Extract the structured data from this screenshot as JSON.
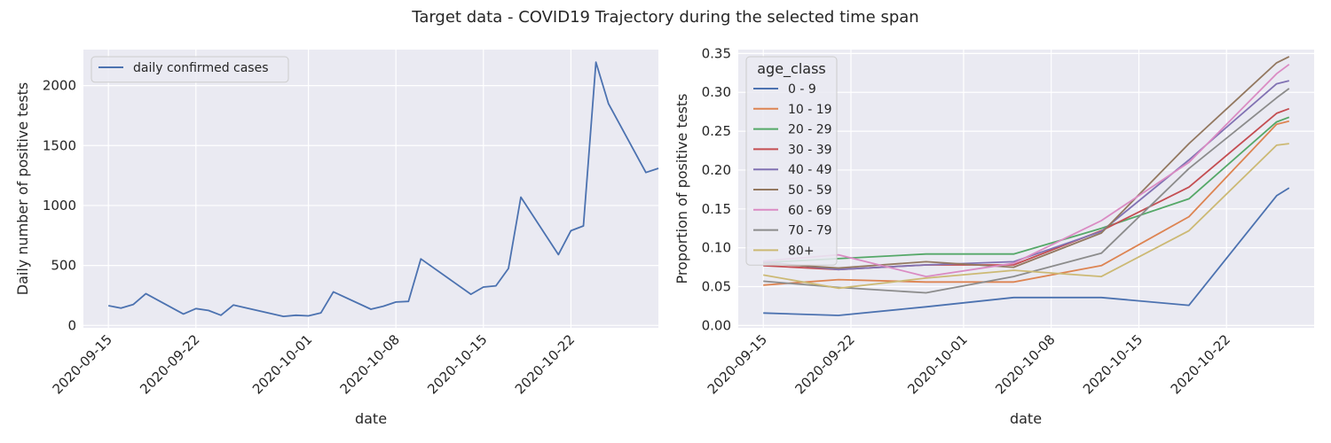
{
  "figure": {
    "title": "Target data - COVID19 Trajectory during the selected time span"
  },
  "chart_data": [
    {
      "type": "line",
      "xlabel": "date",
      "ylabel": "Daily number of positive tests",
      "xlim": [
        "2020-09-13",
        "2020-10-29"
      ],
      "ylim": [
        -20,
        2300
      ],
      "x_ticks": [
        "2020-09-15",
        "2020-09-22",
        "2020-10-01",
        "2020-10-08",
        "2020-10-15",
        "2020-10-22"
      ],
      "y_ticks": [
        0,
        500,
        1000,
        1500,
        2000
      ],
      "grid": true,
      "legend_position": "upper-left",
      "series": [
        {
          "name": "daily confirmed cases",
          "color": "#4c72b0",
          "x": [
            "2020-09-15",
            "2020-09-16",
            "2020-09-17",
            "2020-09-18",
            "2020-09-21",
            "2020-09-22",
            "2020-09-23",
            "2020-09-24",
            "2020-09-25",
            "2020-09-29",
            "2020-09-30",
            "2020-10-01",
            "2020-10-02",
            "2020-10-03",
            "2020-10-06",
            "2020-10-07",
            "2020-10-08",
            "2020-10-09",
            "2020-10-10",
            "2020-10-14",
            "2020-10-15",
            "2020-10-16",
            "2020-10-17",
            "2020-10-18",
            "2020-10-21",
            "2020-10-22",
            "2020-10-23",
            "2020-10-24",
            "2020-10-25",
            "2020-10-28",
            "2020-10-29"
          ],
          "values": [
            165,
            145,
            175,
            265,
            95,
            140,
            125,
            85,
            170,
            75,
            85,
            80,
            105,
            280,
            135,
            160,
            195,
            200,
            555,
            260,
            320,
            330,
            475,
            1070,
            590,
            790,
            830,
            2195,
            1850,
            1275,
            1310
          ]
        }
      ]
    },
    {
      "type": "line",
      "xlabel": "date",
      "ylabel": "Proportion of positive tests",
      "xlim": [
        "2020-09-13",
        "2020-10-29"
      ],
      "ylim": [
        -0.003,
        0.355
      ],
      "x_ticks": [
        "2020-09-15",
        "2020-09-22",
        "2020-10-01",
        "2020-10-08",
        "2020-10-15",
        "2020-10-22"
      ],
      "y_ticks": [
        0.0,
        0.05,
        0.1,
        0.15,
        0.2,
        0.25,
        0.3,
        0.35
      ],
      "y_tick_labels": [
        "0.00",
        "0.05",
        "0.10",
        "0.15",
        "0.20",
        "0.25",
        "0.30",
        "0.35"
      ],
      "grid": true,
      "legend_title": "age_class",
      "legend_position": "upper-left",
      "x": [
        "2020-09-15",
        "2020-09-21",
        "2020-09-28",
        "2020-10-05",
        "2020-10-12",
        "2020-10-19",
        "2020-10-26",
        "2020-10-27"
      ],
      "series": [
        {
          "name": "0 - 9",
          "color": "#4c72b0",
          "values": [
            0.016,
            0.013,
            0.024,
            0.036,
            0.036,
            0.026,
            0.167,
            0.177
          ]
        },
        {
          "name": "10 - 19",
          "color": "#dd8452",
          "values": [
            0.052,
            0.059,
            0.056,
            0.056,
            0.077,
            0.14,
            0.259,
            0.263
          ]
        },
        {
          "name": "20 - 29",
          "color": "#55a868",
          "values": [
            0.081,
            0.086,
            0.092,
            0.092,
            0.125,
            0.163,
            0.262,
            0.268
          ]
        },
        {
          "name": "30 - 39",
          "color": "#c44e52",
          "values": [
            0.077,
            0.072,
            0.078,
            0.078,
            0.122,
            0.178,
            0.273,
            0.279
          ]
        },
        {
          "name": "40 - 49",
          "color": "#8172b3",
          "values": [
            0.082,
            0.072,
            0.078,
            0.082,
            0.121,
            0.213,
            0.311,
            0.315
          ]
        },
        {
          "name": "50 - 59",
          "color": "#937860",
          "values": [
            0.08,
            0.074,
            0.082,
            0.075,
            0.119,
            0.234,
            0.338,
            0.346
          ]
        },
        {
          "name": "60 - 69",
          "color": "#da8bc3",
          "values": [
            0.083,
            0.091,
            0.063,
            0.08,
            0.135,
            0.21,
            0.324,
            0.336
          ]
        },
        {
          "name": "70 - 79",
          "color": "#8c8c8c",
          "values": [
            0.057,
            0.049,
            0.042,
            0.063,
            0.093,
            0.202,
            0.293,
            0.305
          ]
        },
        {
          "name": "80+",
          "color": "#ccb974",
          "values": [
            0.065,
            0.048,
            0.061,
            0.071,
            0.063,
            0.122,
            0.232,
            0.234
          ]
        }
      ]
    }
  ]
}
